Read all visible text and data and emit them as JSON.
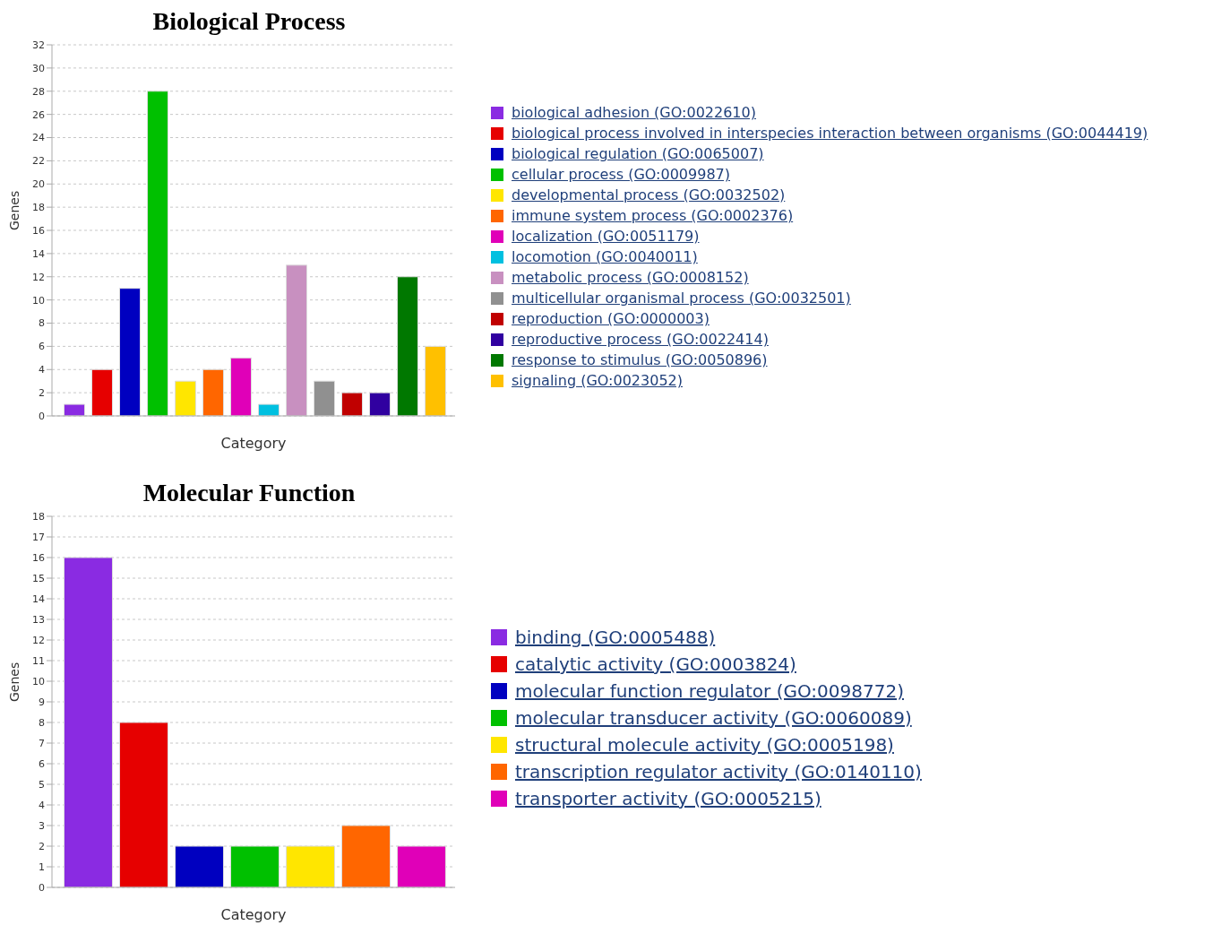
{
  "chart_data": [
    {
      "type": "bar",
      "title": "Biological Process",
      "xlabel": "Category",
      "ylabel": "Genes",
      "categories": [
        null
      ],
      "ylim": [
        0,
        32
      ],
      "yticks": [
        0,
        2,
        4,
        6,
        8,
        10,
        12,
        14,
        16,
        18,
        20,
        22,
        24,
        26,
        28,
        30,
        32
      ],
      "grid": "y",
      "legend": "right",
      "tick_labels": "y",
      "series": [
        {
          "name": "biological adhesion (GO:0022610)",
          "color": "#8a2be2",
          "values": [
            1
          ]
        },
        {
          "name": "biological process involved in interspecies interaction between organisms (GO:0044419)",
          "color": "#e60000",
          "values": [
            4
          ]
        },
        {
          "name": "biological regulation (GO:0065007)",
          "color": "#0000c0",
          "values": [
            11
          ]
        },
        {
          "name": "cellular process (GO:0009987)",
          "color": "#00c000",
          "values": [
            28
          ]
        },
        {
          "name": "developmental process (GO:0032502)",
          "color": "#ffe600",
          "values": [
            3
          ]
        },
        {
          "name": "immune system process (GO:0002376)",
          "color": "#ff6600",
          "values": [
            4
          ]
        },
        {
          "name": "localization (GO:0051179)",
          "color": "#e000b8",
          "values": [
            5
          ]
        },
        {
          "name": "locomotion (GO:0040011)",
          "color": "#00c0e0",
          "values": [
            1
          ]
        },
        {
          "name": "metabolic process (GO:0008152)",
          "color": "#c890c0",
          "values": [
            13
          ]
        },
        {
          "name": "multicellular organismal process (GO:0032501)",
          "color": "#909090",
          "values": [
            3
          ]
        },
        {
          "name": "reproduction (GO:0000003)",
          "color": "#c00000",
          "values": [
            2
          ]
        },
        {
          "name": "reproductive process (GO:0022414)",
          "color": "#3000a0",
          "values": [
            2
          ]
        },
        {
          "name": "response to stimulus (GO:0050896)",
          "color": "#007800",
          "values": [
            12
          ]
        },
        {
          "name": "signaling (GO:0023052)",
          "color": "#ffc000",
          "values": [
            6
          ]
        }
      ]
    },
    {
      "type": "bar",
      "title": "Molecular Function",
      "xlabel": "Category",
      "ylabel": "Genes",
      "categories": [
        null
      ],
      "ylim": [
        0,
        18
      ],
      "yticks": [
        0,
        1,
        2,
        3,
        4,
        5,
        6,
        7,
        8,
        9,
        10,
        11,
        12,
        13,
        14,
        15,
        16,
        17,
        18
      ],
      "grid": "y",
      "legend": "right",
      "tick_labels": "y",
      "series": [
        {
          "name": "binding (GO:0005488)",
          "color": "#8a2be2",
          "values": [
            16
          ]
        },
        {
          "name": "catalytic activity (GO:0003824)",
          "color": "#e60000",
          "values": [
            8
          ]
        },
        {
          "name": "molecular function regulator (GO:0098772)",
          "color": "#0000c0",
          "values": [
            2
          ]
        },
        {
          "name": "molecular transducer activity (GO:0060089)",
          "color": "#00c000",
          "values": [
            2
          ]
        },
        {
          "name": "structural molecule activity (GO:0005198)",
          "color": "#ffe600",
          "values": [
            2
          ]
        },
        {
          "name": "transcription regulator activity (GO:0140110)",
          "color": "#ff6600",
          "values": [
            3
          ]
        },
        {
          "name": "transporter activity (GO:0005215)",
          "color": "#e000b8",
          "values": [
            2
          ]
        }
      ]
    }
  ]
}
